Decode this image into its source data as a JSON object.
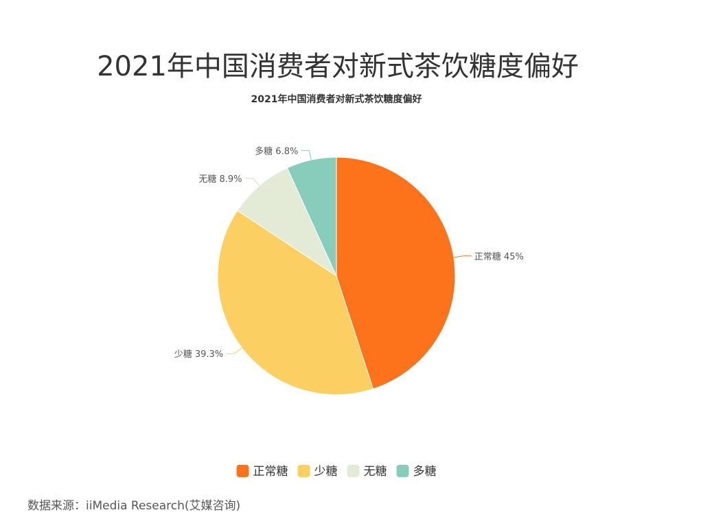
{
  "page": {
    "title": "2021年中国消费者对新式茶饮糖度偏好",
    "source": "数据来源：iiMedia Research(艾媒咨询)"
  },
  "chart_data": {
    "type": "pie",
    "title": "2021年中国消费者对新式茶饮糖度偏好",
    "categories": [
      "正常糖",
      "少糖",
      "无糖",
      "多糖"
    ],
    "values": [
      45,
      39.3,
      8.9,
      6.8
    ],
    "value_labels": [
      "45%",
      "39.3%",
      "8.9%",
      "6.8%"
    ],
    "colors": [
      "#FC731C",
      "#FCCF63",
      "#E3EAD5",
      "#88CCBB"
    ],
    "unit": "%",
    "legend_position": "bottom",
    "start_angle": "top, clockwise"
  }
}
